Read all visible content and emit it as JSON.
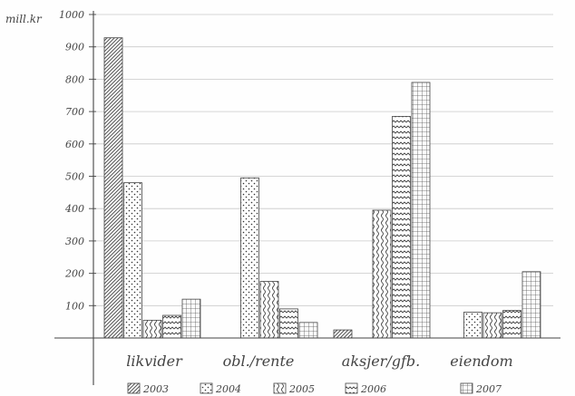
{
  "chart_data": {
    "type": "bar",
    "ylabel": "mill.kr",
    "ylim": [
      0,
      1000
    ],
    "yticks": [
      100,
      200,
      300,
      400,
      500,
      600,
      700,
      800,
      900,
      1000
    ],
    "grid": true,
    "legend_position": "bottom",
    "categories": [
      "likvider",
      "obl./rente",
      "aksjer/gfb.",
      "eiendom"
    ],
    "series": [
      {
        "name": "2003",
        "pattern": "diagonal-hatch",
        "values": [
          928,
          0,
          25,
          0
        ]
      },
      {
        "name": "2004",
        "pattern": "dots",
        "values": [
          480,
          495,
          0,
          80
        ]
      },
      {
        "name": "2005",
        "pattern": "vertical-waves",
        "values": [
          55,
          175,
          395,
          78
        ]
      },
      {
        "name": "2006",
        "pattern": "horizontal-zigzag",
        "values": [
          70,
          90,
          685,
          85
        ]
      },
      {
        "name": "2007",
        "pattern": "grid",
        "values": [
          120,
          48,
          790,
          205
        ]
      }
    ]
  }
}
